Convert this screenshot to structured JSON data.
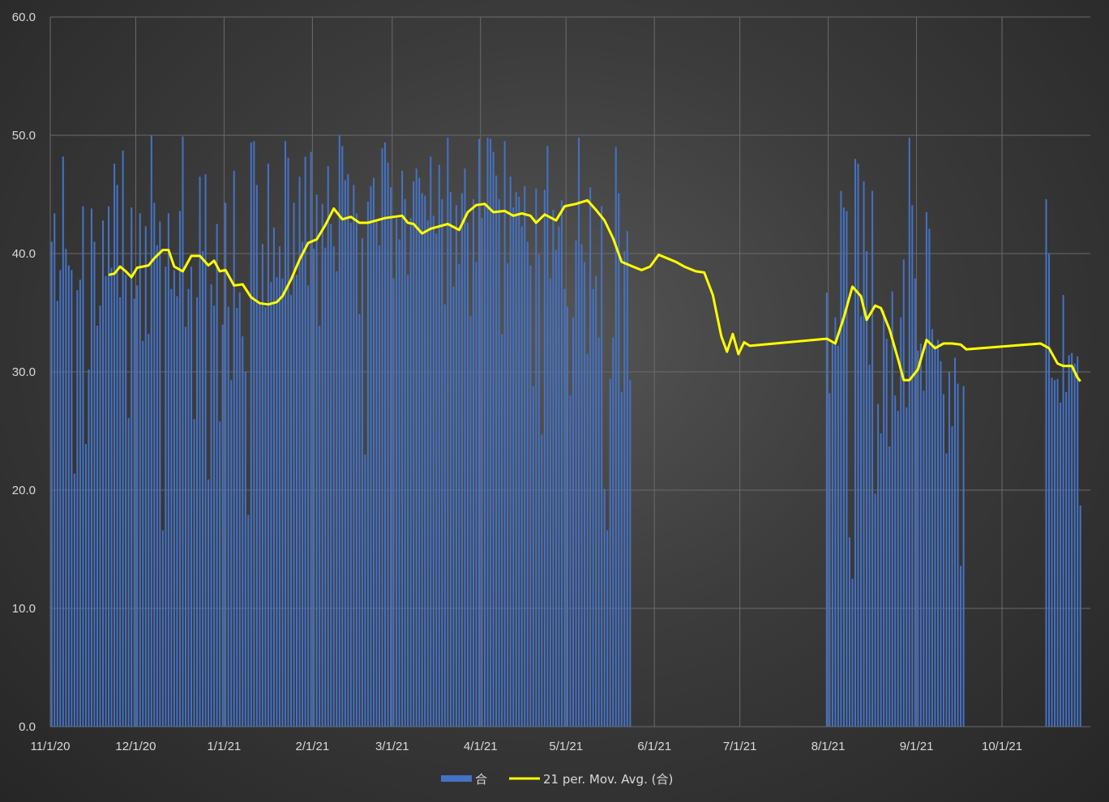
{
  "chart_data": {
    "type": "bar",
    "title": "",
    "xlabel": "",
    "ylabel": "",
    "ylim": [
      0,
      60
    ],
    "y_ticks": [
      "0.0",
      "10.0",
      "20.0",
      "30.0",
      "40.0",
      "50.0",
      "60.0"
    ],
    "x_ticks": [
      "11/1/20",
      "12/1/20",
      "1/1/21",
      "2/1/21",
      "3/1/21",
      "4/1/21",
      "5/1/21",
      "6/1/21",
      "7/1/21",
      "8/1/21",
      "9/1/21",
      "10/1/21"
    ],
    "x_range": [
      "2020-11-01",
      "2021-10-31"
    ],
    "grid": true,
    "legend_position": "bottom",
    "colors": {
      "bars": "#4472c4",
      "moving_average": "#ffff00",
      "grid": "#6b6b6b",
      "text": "#d9d9d9"
    },
    "series": [
      {
        "name": "合",
        "kind": "bar",
        "segments": [
          {
            "start": "2020-11-01",
            "values": [
              41.0,
              43.4,
              36.0,
              38.6,
              48.2,
              40.4,
              39.0,
              38.6,
              21.4,
              36.9,
              37.8,
              44.0,
              23.9,
              30.2,
              43.8,
              41.0,
              33.9,
              35.6,
              42.8,
              38.1,
              44.0,
              38.8,
              47.6,
              45.8,
              36.3,
              48.7,
              38.2,
              26.1,
              43.9,
              36.2,
              37.3,
              43.4,
              32.6,
              42.3,
              33.2,
              50.0,
              44.3,
              40.7,
              42.7,
              16.6,
              38.9,
              43.4,
              37.0,
              38.6,
              36.4,
              43.6,
              49.9,
              33.8,
              37.0,
              38.9,
              26.0,
              36.3,
              46.5,
              40.2,
              46.7,
              20.9,
              37.4,
              35.6,
              42.5,
              25.8,
              34.0,
              44.3,
              35.5,
              29.3,
              47.0,
              35.4,
              36.7,
              33.0,
              30.0,
              17.9,
              49.4,
              49.5,
              45.8,
              35.9,
              40.8,
              35.5,
              47.6,
              37.6,
              42.2,
              38.0,
              40.6,
              37.9,
              49.5,
              48.1,
              36.5,
              44.3,
              38.2,
              46.5,
              41.0,
              48.2,
              37.3,
              48.6,
              40.4,
              45.0,
              33.9,
              44.2,
              40.5,
              47.4,
              42.5,
              40.6,
              38.5,
              50.0,
              49.1,
              46.2,
              46.7,
              42.6,
              45.8,
              43.4,
              34.9,
              41.3,
              23.0,
              44.4,
              45.7,
              46.4,
              42.7,
              40.7,
              48.9,
              49.4,
              47.7,
              45.6,
              37.9,
              43.0,
              41.2,
              47.0,
              44.6,
              38.2,
              43.0,
              46.1,
              47.2,
              46.4,
              45.1,
              44.9,
              42.8,
              48.2,
              43.2,
              41.7,
              47.5,
              44.6,
              35.7,
              49.8,
              45.2,
              37.2,
              44.1,
              39.1,
              45.1,
              47.2,
              42.6,
              34.7,
              44.6,
              39.3,
              49.7,
              43.0,
              44.3,
              49.8,
              49.7,
              48.6,
              46.6,
              44.6,
              33.2,
              49.5,
              39.2,
              46.5,
              43.9,
              45.2,
              44.8,
              42.3,
              45.7,
              41.0,
              39.0,
              28.8,
              45.5,
              39.9,
              24.7,
              45.4,
              49.1,
              37.9,
              43.7,
              40.3,
              42.3,
              44.5,
              37.0,
              35.5,
              28.0,
              34.6,
              41.1,
              49.8,
              40.8,
              39.3,
              31.5,
              45.6,
              37.0,
              38.1,
              32.9,
              44.0,
              20.1,
              16.6,
              29.4,
              32.9,
              49.0,
              45.1,
              28.3,
              40.2,
              41.9,
              29.3
            ]
          },
          {
            "start": "2021-07-31",
            "values": [
              36.7,
              28.2,
              32.6,
              34.6,
              32.2,
              45.3,
              43.9,
              43.6,
              16.0,
              12.5,
              48.0,
              47.6,
              34.7,
              46.1,
              40.2,
              30.6,
              45.3,
              19.7,
              27.3,
              24.8,
              35.2,
              32.8,
              23.7,
              36.8,
              28.0,
              26.7,
              34.6,
              39.5,
              27.0,
              49.8,
              44.1,
              37.9,
              31.8,
              32.4,
              28.4,
              43.5,
              42.1,
              33.6,
              32.3,
              32.7,
              30.9,
              28.1,
              23.1,
              30.0,
              25.4,
              31.2,
              29.0,
              13.6,
              28.8
            ]
          },
          {
            "start": "2021-10-16",
            "values": [
              44.6,
              40.0,
              29.5,
              29.3,
              29.4,
              27.4,
              36.5,
              28.3,
              31.4,
              31.6,
              30.7,
              31.3,
              18.7
            ]
          }
        ]
      },
      {
        "name": "21 per. Mov. Avg. (合)",
        "kind": "line",
        "points": [
          [
            "2020-11-21",
            38.2
          ],
          [
            "2020-11-23",
            38.3
          ],
          [
            "2020-11-25",
            38.9
          ],
          [
            "2020-11-27",
            38.5
          ],
          [
            "2020-11-29",
            38.0
          ],
          [
            "2020-12-01",
            38.8
          ],
          [
            "2020-12-05",
            39.0
          ],
          [
            "2020-12-07",
            39.6
          ],
          [
            "2020-12-10",
            40.3
          ],
          [
            "2020-12-12",
            40.3
          ],
          [
            "2020-12-14",
            38.9
          ],
          [
            "2020-12-17",
            38.5
          ],
          [
            "2020-12-20",
            39.8
          ],
          [
            "2020-12-23",
            39.8
          ],
          [
            "2020-12-26",
            39.0
          ],
          [
            "2020-12-28",
            39.4
          ],
          [
            "2020-12-30",
            38.5
          ],
          [
            "2021-01-01",
            38.6
          ],
          [
            "2021-01-04",
            37.3
          ],
          [
            "2021-01-07",
            37.4
          ],
          [
            "2021-01-10",
            36.3
          ],
          [
            "2021-01-13",
            35.8
          ],
          [
            "2021-01-16",
            35.7
          ],
          [
            "2021-01-19",
            35.9
          ],
          [
            "2021-01-21",
            36.4
          ],
          [
            "2021-01-24",
            37.8
          ],
          [
            "2021-01-27",
            39.5
          ],
          [
            "2021-01-30",
            40.9
          ],
          [
            "2021-02-02",
            41.2
          ],
          [
            "2021-02-05",
            42.4
          ],
          [
            "2021-02-08",
            43.8
          ],
          [
            "2021-02-11",
            42.9
          ],
          [
            "2021-02-14",
            43.1
          ],
          [
            "2021-02-17",
            42.6
          ],
          [
            "2021-02-20",
            42.6
          ],
          [
            "2021-02-23",
            42.8
          ],
          [
            "2021-02-26",
            43.0
          ],
          [
            "2021-03-01",
            43.1
          ],
          [
            "2021-03-04",
            43.2
          ],
          [
            "2021-03-06",
            42.6
          ],
          [
            "2021-03-08",
            42.5
          ],
          [
            "2021-03-11",
            41.7
          ],
          [
            "2021-03-14",
            42.1
          ],
          [
            "2021-03-17",
            42.3
          ],
          [
            "2021-03-20",
            42.5
          ],
          [
            "2021-03-24",
            42.0
          ],
          [
            "2021-03-27",
            43.5
          ],
          [
            "2021-03-30",
            44.1
          ],
          [
            "2021-04-02",
            44.2
          ],
          [
            "2021-04-05",
            43.5
          ],
          [
            "2021-04-09",
            43.6
          ],
          [
            "2021-04-12",
            43.2
          ],
          [
            "2021-04-15",
            43.4
          ],
          [
            "2021-04-18",
            43.2
          ],
          [
            "2021-04-20",
            42.6
          ],
          [
            "2021-04-23",
            43.3
          ],
          [
            "2021-04-27",
            42.8
          ],
          [
            "2021-04-30",
            44.0
          ],
          [
            "2021-05-04",
            44.2
          ],
          [
            "2021-05-08",
            44.5
          ],
          [
            "2021-05-11",
            43.7
          ],
          [
            "2021-05-14",
            42.8
          ],
          [
            "2021-05-17",
            41.3
          ],
          [
            "2021-05-20",
            39.3
          ],
          [
            "2021-05-24",
            38.9
          ],
          [
            "2021-05-27",
            38.6
          ],
          [
            "2021-05-30",
            38.9
          ],
          [
            "2021-06-02",
            39.9
          ],
          [
            "2021-06-05",
            39.6
          ],
          [
            "2021-06-08",
            39.3
          ],
          [
            "2021-06-11",
            38.9
          ],
          [
            "2021-06-15",
            38.5
          ],
          [
            "2021-06-18",
            38.4
          ],
          [
            "2021-06-21",
            36.5
          ],
          [
            "2021-06-24",
            33.0
          ],
          [
            "2021-06-26",
            31.7
          ],
          [
            "2021-06-28",
            33.2
          ],
          [
            "2021-06-30",
            31.5
          ],
          [
            "2021-07-02",
            32.5
          ],
          [
            "2021-07-04",
            32.2
          ],
          [
            "2021-07-31",
            32.8
          ],
          [
            "2021-08-03",
            32.4
          ],
          [
            "2021-08-06",
            34.6
          ],
          [
            "2021-08-09",
            37.2
          ],
          [
            "2021-08-12",
            36.4
          ],
          [
            "2021-08-14",
            34.4
          ],
          [
            "2021-08-17",
            35.6
          ],
          [
            "2021-08-19",
            35.4
          ],
          [
            "2021-08-22",
            33.6
          ],
          [
            "2021-08-25",
            31.1
          ],
          [
            "2021-08-27",
            29.3
          ],
          [
            "2021-08-29",
            29.3
          ],
          [
            "2021-09-01",
            30.2
          ],
          [
            "2021-09-04",
            32.7
          ],
          [
            "2021-09-07",
            32.0
          ],
          [
            "2021-09-10",
            32.4
          ],
          [
            "2021-09-13",
            32.4
          ],
          [
            "2021-09-16",
            32.3
          ],
          [
            "2021-09-18",
            31.9
          ],
          [
            "2021-10-14",
            32.4
          ],
          [
            "2021-10-17",
            32.0
          ],
          [
            "2021-10-20",
            30.7
          ],
          [
            "2021-10-22",
            30.5
          ],
          [
            "2021-10-25",
            30.5
          ],
          [
            "2021-10-27",
            29.5
          ],
          [
            "2021-10-28",
            29.2
          ]
        ]
      }
    ]
  }
}
